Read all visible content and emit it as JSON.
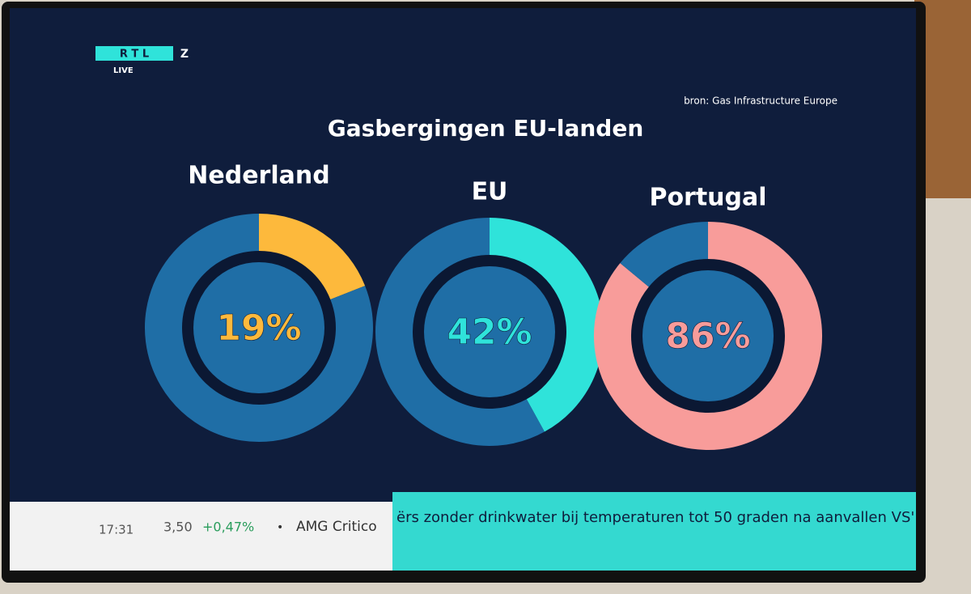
{
  "page": {
    "logo": "R T L",
    "logo_z": "Z",
    "live": "LIVE",
    "source": "bron: Gas Infrastructure Europe",
    "title": "Gasbergingen EU-landen"
  },
  "ticker": {
    "time": "17:31",
    "quote": "3,50",
    "change": "+0,47%",
    "bullet": "•",
    "item": "AMG Critico",
    "headline": "ërs zonder drinkwater bij temperaturen tot 50 graden na aanvallen VS'"
  },
  "chart_data": [
    {
      "type": "donut",
      "title": "Nederland",
      "values": [
        19,
        81
      ],
      "value_labels": [
        "19%",
        null
      ],
      "colors": [
        "#fdb93c",
        "#1f6ea6"
      ]
    },
    {
      "type": "donut",
      "title": "EU",
      "values": [
        42,
        58
      ],
      "value_labels": [
        "42%",
        null
      ],
      "colors": [
        "#2fe3da",
        "#1f6ea6"
      ]
    },
    {
      "type": "donut",
      "title": "Portugal",
      "values": [
        86,
        14
      ],
      "value_labels": [
        "86%",
        null
      ],
      "colors": [
        "#f89c9a",
        "#1f6ea6"
      ]
    }
  ]
}
